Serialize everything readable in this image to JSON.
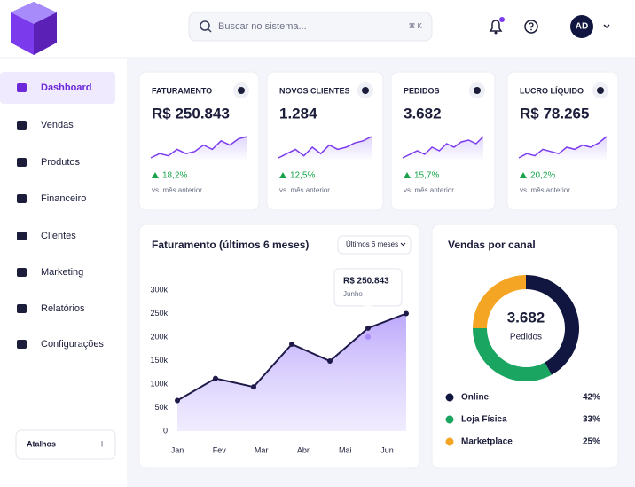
{
  "search": {
    "placeholder": "Buscar no sistema...",
    "shortcut": "⌘ K"
  },
  "user": {
    "initials": "AD"
  },
  "nav": [
    {
      "label": "Dashboard",
      "active": true
    },
    {
      "label": "Vendas",
      "active": false
    },
    {
      "label": "Produtos",
      "active": false
    },
    {
      "label": "Financeiro",
      "active": false
    },
    {
      "label": "Clientes",
      "active": false
    },
    {
      "label": "Marketing",
      "active": false
    },
    {
      "label": "Relatórios",
      "active": false
    },
    {
      "label": "Configurações",
      "active": false
    }
  ],
  "shortcuts": {
    "label": "Atalhos",
    "action": "+"
  },
  "kpis": [
    {
      "label": "FATURAMENTO",
      "value": "R$ 250.843",
      "change": "18,2%",
      "note": "vs. mês anterior",
      "trend": [
        3,
        4,
        3.5,
        5,
        4,
        4.5,
        6,
        5,
        7,
        6,
        7.5,
        8
      ]
    },
    {
      "label": "NOVOS CLIENTES",
      "value": "1.284",
      "change": "12,5%",
      "note": "vs. mês anterior",
      "trend": [
        3,
        4,
        5,
        3.5,
        5.5,
        4,
        6,
        5,
        5.5,
        6.5,
        7,
        8
      ]
    },
    {
      "label": "PEDIDOS",
      "value": "3.682",
      "change": "15,7%",
      "note": "vs. mês anterior",
      "trend": [
        2,
        3,
        4,
        3,
        5,
        4,
        6,
        5,
        6.5,
        7,
        6,
        8
      ]
    },
    {
      "label": "LUCRO LÍQUIDO",
      "value": "R$ 78.265",
      "change": "20,2%",
      "note": "vs. mês anterior",
      "trend": [
        3,
        4,
        3.5,
        5,
        4.5,
        4,
        5.5,
        5,
        6,
        5.5,
        6.5,
        8
      ]
    }
  ],
  "revenue_chart": {
    "type": "line",
    "title": "Faturamento (últimos 6 meses)",
    "filter": "Últimos 6 meses",
    "x": [
      0,
      1,
      2,
      3,
      4,
      5,
      6
    ],
    "values": [
      65000,
      112000,
      94000,
      185000,
      149000,
      219000,
      250000
    ],
    "xlim": [
      0,
      6
    ],
    "xticks": [
      {
        "value": 0,
        "label": "Jan"
      },
      {
        "value": 1.1,
        "label": "Fev"
      },
      {
        "value": 2.2,
        "label": "Mar"
      },
      {
        "value": 3.3,
        "label": "Abr"
      },
      {
        "value": 4.4,
        "label": "Mai"
      },
      {
        "value": 5.5,
        "label": "Jun"
      }
    ],
    "ylim": [
      0,
      300000
    ],
    "yticks": [
      0,
      {
        "value": 50000,
        "label": "50k"
      },
      {
        "value": 100000,
        "label": "100k"
      },
      {
        "value": 150000,
        "label": "150k"
      },
      {
        "value": 200000,
        "label": "200k"
      },
      {
        "value": 250000,
        "label": "250k"
      },
      {
        "value": 300000,
        "label": "300k"
      }
    ],
    "color": "#1e1b4b",
    "fill": "#a78bfa",
    "tooltip": {
      "value": "R$ 250.843",
      "label": "Junho"
    }
  },
  "channel_chart": {
    "type": "donut",
    "title": "Vendas por canal",
    "center_value": "3.682",
    "center_label": "Pedidos",
    "categories": [
      "Online",
      "Loja Física",
      "Marketplace"
    ],
    "values": [
      42,
      33,
      25
    ],
    "value_labels": [
      "42%",
      "33%",
      "25%"
    ],
    "colors": [
      "#111640",
      "#1aa561",
      "#f5a524"
    ]
  }
}
